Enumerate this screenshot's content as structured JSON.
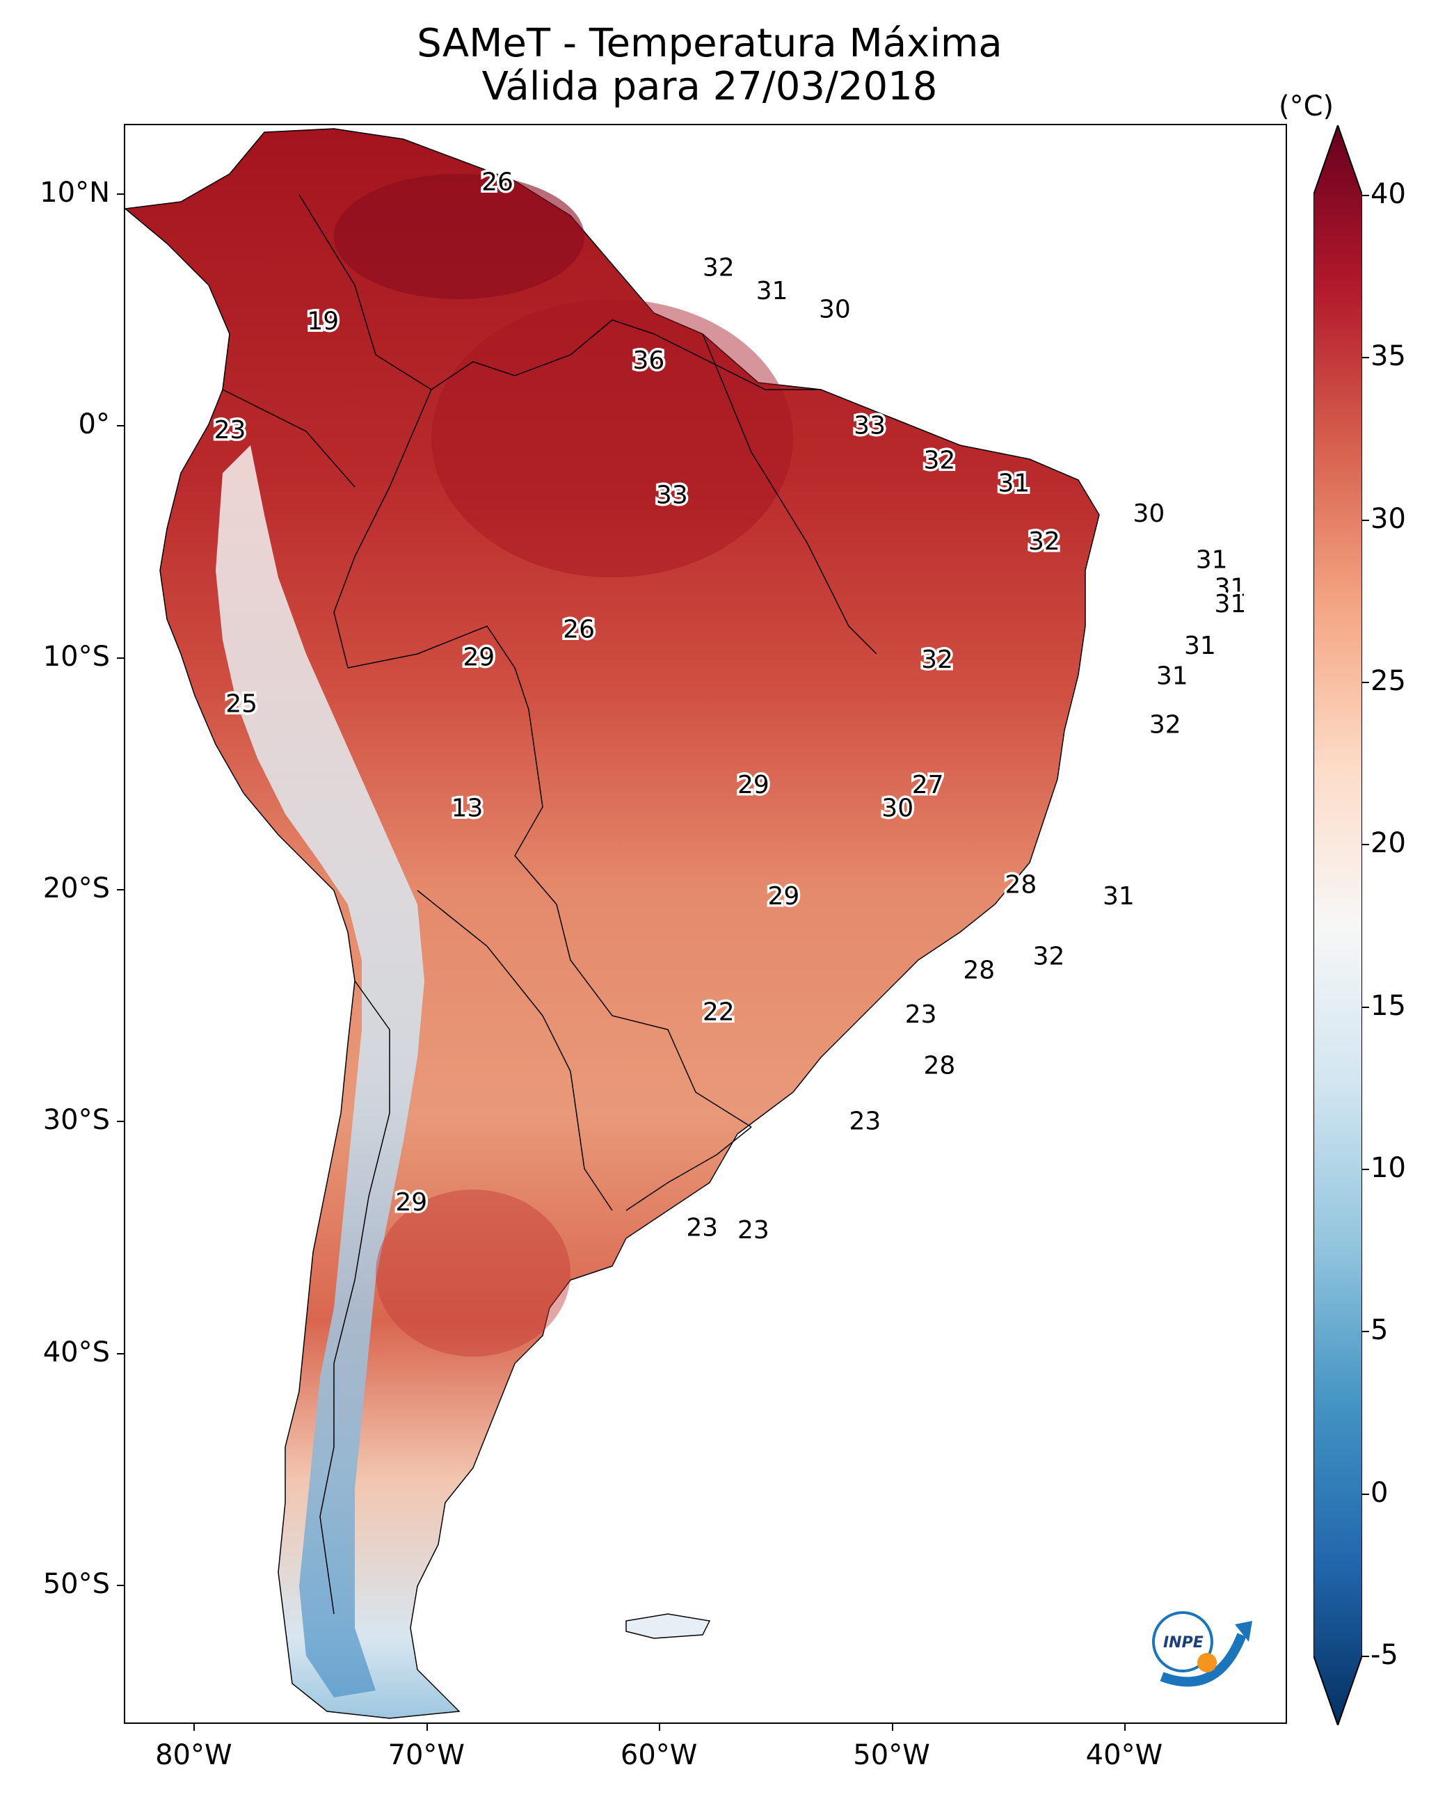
{
  "title": {
    "line1": "SAMeT - Temperatura Máxima",
    "line2": "Válida para 27/03/2018"
  },
  "map": {
    "lon_range": [
      -83,
      -33
    ],
    "lat_range": [
      -56,
      13
    ],
    "y_ticks": [
      {
        "lat": 10,
        "label": "10°N"
      },
      {
        "lat": 0,
        "label": "0°"
      },
      {
        "lat": -10,
        "label": "10°S"
      },
      {
        "lat": -20,
        "label": "20°S"
      },
      {
        "lat": -30,
        "label": "30°S"
      },
      {
        "lat": -40,
        "label": "40°S"
      },
      {
        "lat": -50,
        "label": "50°S"
      }
    ],
    "x_ticks": [
      {
        "lon": -80,
        "label": "80°W"
      },
      {
        "lon": -70,
        "label": "70°W"
      },
      {
        "lon": -60,
        "label": "60°W"
      },
      {
        "lon": -50,
        "label": "50°W"
      },
      {
        "lon": -40,
        "label": "40°W"
      }
    ],
    "station_values": [
      {
        "lon": -67,
        "lat": 10.5,
        "value": "26"
      },
      {
        "lon": -57.5,
        "lat": 6.8,
        "value": "32"
      },
      {
        "lon": -55.2,
        "lat": 5.8,
        "value": "31"
      },
      {
        "lon": -52.5,
        "lat": 5.0,
        "value": "30"
      },
      {
        "lon": -74.5,
        "lat": 4.5,
        "value": "19"
      },
      {
        "lon": -60.5,
        "lat": 2.8,
        "value": "36"
      },
      {
        "lon": -51.0,
        "lat": 0.0,
        "value": "33"
      },
      {
        "lon": -78.5,
        "lat": -0.2,
        "value": "23"
      },
      {
        "lon": -48.0,
        "lat": -1.5,
        "value": "32"
      },
      {
        "lon": -59.5,
        "lat": -3.0,
        "value": "33"
      },
      {
        "lon": -44.8,
        "lat": -2.5,
        "value": "31"
      },
      {
        "lon": -39.0,
        "lat": -3.8,
        "value": "30"
      },
      {
        "lon": -43.5,
        "lat": -5.0,
        "value": "32"
      },
      {
        "lon": -36.3,
        "lat": -5.8,
        "value": "31"
      },
      {
        "lon": -35.5,
        "lat": -7.0,
        "value": "31"
      },
      {
        "lon": -35.5,
        "lat": -7.7,
        "value": "31"
      },
      {
        "lon": -63.5,
        "lat": -8.8,
        "value": "26"
      },
      {
        "lon": -36.8,
        "lat": -9.5,
        "value": "31"
      },
      {
        "lon": -67.8,
        "lat": -10.0,
        "value": "29"
      },
      {
        "lon": -48.1,
        "lat": -10.1,
        "value": "32"
      },
      {
        "lon": -38.0,
        "lat": -10.8,
        "value": "31"
      },
      {
        "lon": -78.0,
        "lat": -12.0,
        "value": "25"
      },
      {
        "lon": -38.3,
        "lat": -12.9,
        "value": "32"
      },
      {
        "lon": -56.0,
        "lat": -15.5,
        "value": "29"
      },
      {
        "lon": -48.5,
        "lat": -15.5,
        "value": "27"
      },
      {
        "lon": -49.8,
        "lat": -16.5,
        "value": "30"
      },
      {
        "lon": -68.3,
        "lat": -16.5,
        "value": "13"
      },
      {
        "lon": -44.5,
        "lat": -19.8,
        "value": "28"
      },
      {
        "lon": -54.7,
        "lat": -20.3,
        "value": "29"
      },
      {
        "lon": -40.3,
        "lat": -20.3,
        "value": "31"
      },
      {
        "lon": -43.3,
        "lat": -22.9,
        "value": "32"
      },
      {
        "lon": -46.3,
        "lat": -23.5,
        "value": "28"
      },
      {
        "lon": -57.5,
        "lat": -25.3,
        "value": "22"
      },
      {
        "lon": -48.8,
        "lat": -25.4,
        "value": "23"
      },
      {
        "lon": -48.0,
        "lat": -27.6,
        "value": "28"
      },
      {
        "lon": -51.2,
        "lat": -30.0,
        "value": "23"
      },
      {
        "lon": -70.7,
        "lat": -33.5,
        "value": "29"
      },
      {
        "lon": -58.2,
        "lat": -34.6,
        "value": "23"
      },
      {
        "lon": -56.0,
        "lat": -34.7,
        "value": "23"
      }
    ]
  },
  "colorbar": {
    "unit": "(°C)",
    "vmin": -5,
    "vmax": 40,
    "ticks": [
      "-5",
      "0",
      "5",
      "10",
      "15",
      "20",
      "25",
      "30",
      "35",
      "40"
    ],
    "colors": [
      "#053061",
      "#2166ac",
      "#4393c3",
      "#92c5de",
      "#d1e5f0",
      "#f7f7f7",
      "#fddbc7",
      "#f4a582",
      "#d6604d",
      "#b2182b",
      "#67001f"
    ]
  },
  "logo": {
    "text": "INPE",
    "colors": {
      "arc": "#1a75bc",
      "dot": "#f7941d"
    }
  }
}
